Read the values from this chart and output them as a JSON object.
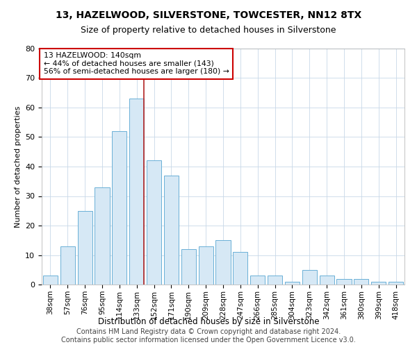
{
  "title": "13, HAZELWOOD, SILVERSTONE, TOWCESTER, NN12 8TX",
  "subtitle": "Size of property relative to detached houses in Silverstone",
  "xlabel": "Distribution of detached houses by size in Silverstone",
  "ylabel": "Number of detached properties",
  "categories": [
    "38sqm",
    "57sqm",
    "76sqm",
    "95sqm",
    "114sqm",
    "133sqm",
    "152sqm",
    "171sqm",
    "190sqm",
    "209sqm",
    "228sqm",
    "247sqm",
    "266sqm",
    "285sqm",
    "304sqm",
    "323sqm",
    "342sqm",
    "361sqm",
    "380sqm",
    "399sqm",
    "418sqm"
  ],
  "values": [
    3,
    13,
    25,
    33,
    52,
    63,
    42,
    37,
    12,
    13,
    15,
    11,
    3,
    3,
    1,
    5,
    3,
    2,
    2,
    1,
    1
  ],
  "bar_color": "#d6e8f5",
  "bar_edgecolor": "#6aafd6",
  "vline_x_index": 5.42,
  "vline_color": "#b22222",
  "annotation_text": "13 HAZELWOOD: 140sqm\n← 44% of detached houses are smaller (143)\n56% of semi-detached houses are larger (180) →",
  "annotation_box_edgecolor": "#cc0000",
  "annotation_box_facecolor": "#ffffff",
  "footer_text": "Contains HM Land Registry data © Crown copyright and database right 2024.\nContains public sector information licensed under the Open Government Licence v3.0.",
  "ylim": [
    0,
    80
  ],
  "yticks": [
    0,
    10,
    20,
    30,
    40,
    50,
    60,
    70,
    80
  ],
  "background_color": "#ffffff",
  "title_fontsize": 10,
  "subtitle_fontsize": 9,
  "footer_fontsize": 7
}
